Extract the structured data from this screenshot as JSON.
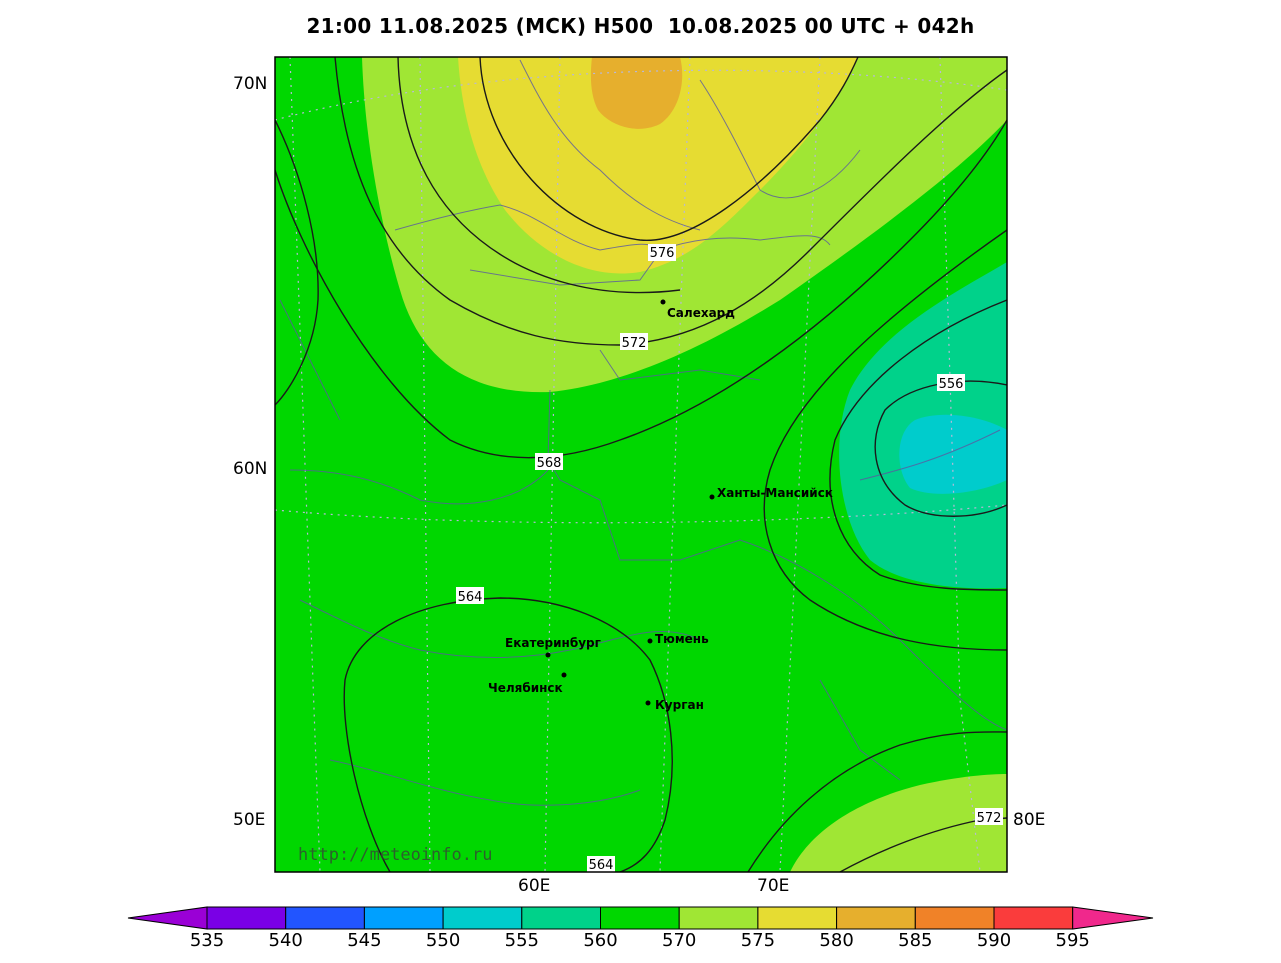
{
  "title": "21:00 11.08.2025 (МСК) H500  10.08.2025 00 UTC + 042h",
  "watermark": "http://meteoinfo.ru",
  "axis": {
    "lat_labels": [
      "70N",
      "60N",
      "50E"
    ],
    "lon_labels_bottom": [
      "60E",
      "70E"
    ],
    "lon_label_right": "80E"
  },
  "contour_labels": [
    "576",
    "572",
    "568",
    "556",
    "564",
    "564",
    "572"
  ],
  "cities": [
    {
      "name": "Салехард"
    },
    {
      "name": "Ханты-Мансийск"
    },
    {
      "name": "Екатеринбург"
    },
    {
      "name": "Тюмень"
    },
    {
      "name": "Челябинск"
    },
    {
      "name": "Курган"
    }
  ],
  "colorbar": {
    "ticks": [
      "535",
      "540",
      "545",
      "550",
      "555",
      "560",
      "570",
      "575",
      "580",
      "585",
      "590",
      "595"
    ],
    "colors": [
      "#9a00d6",
      "#7a00e6",
      "#2255ff",
      "#00a0ff",
      "#00cccc",
      "#00d28a",
      "#00d700",
      "#a0e634",
      "#e6dc32",
      "#e6af2d",
      "#f08228",
      "#fa3c3c",
      "#f0288c"
    ]
  }
}
